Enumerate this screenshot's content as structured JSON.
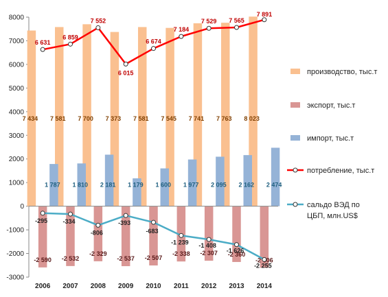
{
  "chart_data": {
    "type": "bar",
    "categories": [
      "2006",
      "2007",
      "2008",
      "2009",
      "2010",
      "2011",
      "2012",
      "2013",
      "2014"
    ],
    "ylim": [
      -3000,
      8000
    ],
    "yticks": [
      -3000,
      -2000,
      -1000,
      0,
      1000,
      2000,
      3000,
      4000,
      5000,
      6000,
      7000,
      8000
    ],
    "grid": false,
    "legend_position": "right",
    "series": [
      {
        "name": "производство, тыс.т",
        "kind": "bar",
        "color": "#FAC090",
        "values": [
          7434,
          7581,
          7700,
          7373,
          7581,
          7545,
          7741,
          7763,
          8023
        ],
        "labels": [
          "7 434",
          "7 581",
          "7 700",
          "7 373",
          "7 581",
          "7 545",
          "7 741",
          "7 763",
          "8 023"
        ]
      },
      {
        "name": "экспорт, тыс.т",
        "kind": "bar",
        "color": "#D99694",
        "values": [
          -2590,
          -2532,
          -2329,
          -2537,
          -2507,
          -2338,
          -2307,
          -2360,
          -2606
        ],
        "labels": [
          "-2 590",
          "-2 532",
          "-2 329",
          "-2 537",
          "-2 507",
          "-2 338",
          "-2 307",
          "-2 360",
          "-2 606"
        ]
      },
      {
        "name": "импорт, тыс.т",
        "kind": "bar",
        "color": "#95B3D7",
        "values": [
          1787,
          1810,
          2181,
          1179,
          1600,
          1977,
          2095,
          2162,
          2474
        ],
        "labels": [
          "1 787",
          "1 810",
          "2 181",
          "1 179",
          "1 600",
          "1 977",
          "2 095",
          "2 162",
          "2 474"
        ]
      },
      {
        "name": "потребление, тыс.т",
        "kind": "line",
        "color": "#FF0000",
        "values": [
          6631,
          6859,
          7552,
          6015,
          6674,
          7184,
          7529,
          7565,
          7891
        ],
        "labels": [
          "6 631",
          "6 859",
          "7 552",
          "6 015",
          "6 674",
          "7 184",
          "7 529",
          "7 565",
          "7 891"
        ]
      },
      {
        "name": "сальдо ВЭД по ЦБП, млн.US$",
        "kind": "line",
        "color": "#4BACC6",
        "values": [
          -295,
          -334,
          -806,
          -393,
          -683,
          -1239,
          -1408,
          -1626,
          -2255
        ],
        "labels": [
          "-295",
          "-334",
          "-806",
          "-393",
          "-683",
          "-1 239",
          "-1 408",
          "-1 626",
          "-2 255"
        ]
      }
    ]
  },
  "legend_lines": [
    [
      "производство, тыс.т"
    ],
    [
      "экспорт, тыс.т"
    ],
    [
      "импорт, тыс.т"
    ],
    [
      "потребление, тыс.т"
    ],
    [
      "сальдо ВЭД по",
      "ЦБП, млн.US$"
    ]
  ]
}
